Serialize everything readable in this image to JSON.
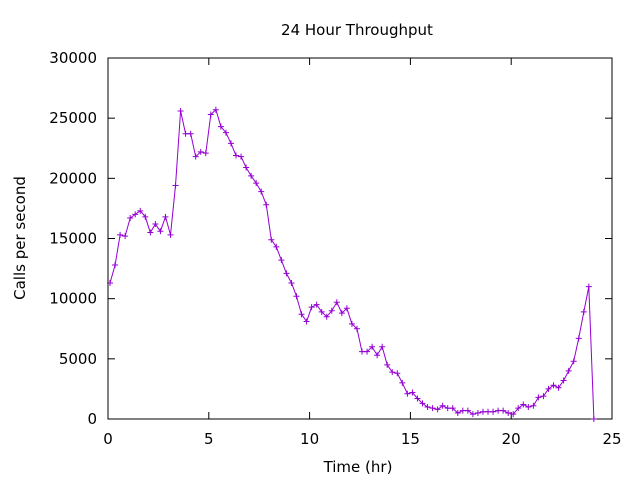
{
  "chart_data": {
    "type": "line",
    "title": "24 Hour Throughput",
    "xlabel": "Time (hr)",
    "ylabel": "Calls per second",
    "xlim": [
      0,
      25
    ],
    "ylim": [
      0,
      30000
    ],
    "xticks": [
      0,
      5,
      10,
      15,
      20,
      25
    ],
    "yticks": [
      0,
      5000,
      10000,
      15000,
      20000,
      25000,
      30000
    ],
    "grid": false,
    "legend": "none",
    "series_color": "#9400d3",
    "series": [
      {
        "marker": "plus",
        "points": [
          [
            0.1,
            11300
          ],
          [
            0.35,
            12800
          ],
          [
            0.6,
            15300
          ],
          [
            0.85,
            15200
          ],
          [
            1.1,
            16700
          ],
          [
            1.35,
            17000
          ],
          [
            1.6,
            17300
          ],
          [
            1.85,
            16800
          ],
          [
            2.1,
            15500
          ],
          [
            2.35,
            16200
          ],
          [
            2.6,
            15600
          ],
          [
            2.85,
            16800
          ],
          [
            3.1,
            15300
          ],
          [
            3.35,
            19400
          ],
          [
            3.6,
            25600
          ],
          [
            3.85,
            23700
          ],
          [
            4.1,
            23700
          ],
          [
            4.35,
            21800
          ],
          [
            4.6,
            22200
          ],
          [
            4.85,
            22100
          ],
          [
            5.1,
            25300
          ],
          [
            5.35,
            25700
          ],
          [
            5.6,
            24300
          ],
          [
            5.85,
            23800
          ],
          [
            6.1,
            22900
          ],
          [
            6.35,
            21900
          ],
          [
            6.6,
            21800
          ],
          [
            6.85,
            20900
          ],
          [
            7.1,
            20200
          ],
          [
            7.35,
            19600
          ],
          [
            7.6,
            18900
          ],
          [
            7.85,
            17800
          ],
          [
            8.1,
            14900
          ],
          [
            8.35,
            14300
          ],
          [
            8.6,
            13200
          ],
          [
            8.85,
            12100
          ],
          [
            9.1,
            11300
          ],
          [
            9.35,
            10200
          ],
          [
            9.6,
            8700
          ],
          [
            9.85,
            8100
          ],
          [
            10.1,
            9300
          ],
          [
            10.35,
            9500
          ],
          [
            10.6,
            8900
          ],
          [
            10.85,
            8500
          ],
          [
            11.1,
            9000
          ],
          [
            11.35,
            9700
          ],
          [
            11.6,
            8800
          ],
          [
            11.85,
            9200
          ],
          [
            12.1,
            7900
          ],
          [
            12.35,
            7500
          ],
          [
            12.6,
            5600
          ],
          [
            12.85,
            5600
          ],
          [
            13.1,
            6000
          ],
          [
            13.35,
            5300
          ],
          [
            13.6,
            6000
          ],
          [
            13.85,
            4500
          ],
          [
            14.1,
            3900
          ],
          [
            14.35,
            3800
          ],
          [
            14.6,
            3000
          ],
          [
            14.85,
            2100
          ],
          [
            15.1,
            2200
          ],
          [
            15.35,
            1700
          ],
          [
            15.6,
            1300
          ],
          [
            15.85,
            1000
          ],
          [
            16.1,
            900
          ],
          [
            16.35,
            800
          ],
          [
            16.6,
            1100
          ],
          [
            16.85,
            900
          ],
          [
            17.1,
            900
          ],
          [
            17.35,
            500
          ],
          [
            17.6,
            700
          ],
          [
            17.85,
            700
          ],
          [
            18.1,
            400
          ],
          [
            18.35,
            500
          ],
          [
            18.6,
            600
          ],
          [
            18.85,
            600
          ],
          [
            19.1,
            600
          ],
          [
            19.35,
            700
          ],
          [
            19.6,
            700
          ],
          [
            19.85,
            500
          ],
          [
            20.1,
            400
          ],
          [
            20.35,
            900
          ],
          [
            20.6,
            1200
          ],
          [
            20.85,
            1000
          ],
          [
            21.1,
            1100
          ],
          [
            21.35,
            1800
          ],
          [
            21.6,
            1900
          ],
          [
            21.85,
            2500
          ],
          [
            22.1,
            2800
          ],
          [
            22.35,
            2600
          ],
          [
            22.6,
            3200
          ],
          [
            22.85,
            4000
          ],
          [
            23.1,
            4800
          ],
          [
            23.35,
            6700
          ],
          [
            23.6,
            8900
          ],
          [
            23.85,
            11000
          ],
          [
            24.1,
            0
          ]
        ]
      }
    ]
  }
}
